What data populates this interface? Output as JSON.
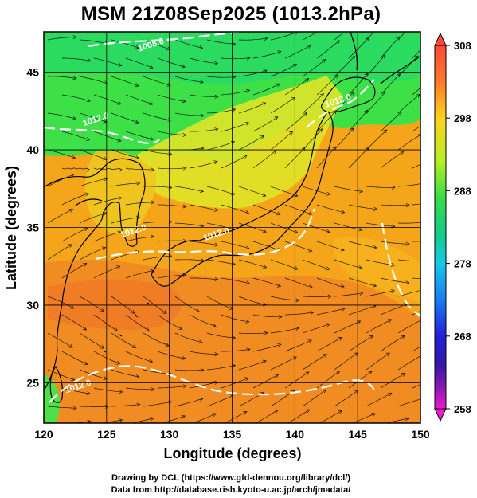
{
  "title": "MSM 21Z08Sep2025 (1013.2hPa)",
  "map": {
    "xlabel": "Longitude (degrees)",
    "ylabel": "Latitude  (degrees)",
    "lon_range": [
      120,
      150
    ],
    "lat_range": [
      22.4,
      47.6
    ],
    "lon_ticks": [
      120,
      125,
      130,
      135,
      140,
      145,
      150
    ],
    "lat_ticks": [
      25,
      30,
      35,
      40,
      45
    ],
    "grid": true,
    "field": "temperature (K) with streamlines and isobars",
    "isobar_labels": [
      {
        "text": "1008.0",
        "lon": 128.6,
        "lat": 46.6
      },
      {
        "text": "1012.0",
        "lon": 124.2,
        "lat": 41.8
      },
      {
        "text": "1012.0",
        "lon": 143.5,
        "lat": 43.0
      },
      {
        "text": "1012.0",
        "lon": 127.2,
        "lat": 34.6
      },
      {
        "text": "1012.0",
        "lon": 133.8,
        "lat": 34.4
      },
      {
        "text": "1012.0",
        "lon": 122.8,
        "lat": 24.6
      }
    ]
  },
  "colorbar": {
    "labels": [
      "308",
      "298",
      "288",
      "278",
      "268",
      "258"
    ],
    "colors": [
      "#ff4a3a",
      "#ff8a1e",
      "#ffd21e",
      "#c8f01e",
      "#4ee23c",
      "#12cc80",
      "#18c8e8",
      "#1a8cf0",
      "#2030e0",
      "#3418b8",
      "#8a18b0",
      "#e018c8"
    ]
  },
  "credits": {
    "line1": "Drawing by DCL (https://www.gfd-dennou.org/library/dcl/)",
    "line2": "Data from http://database.rish.kyoto-u.ac.jp/arch/jmadata/"
  }
}
